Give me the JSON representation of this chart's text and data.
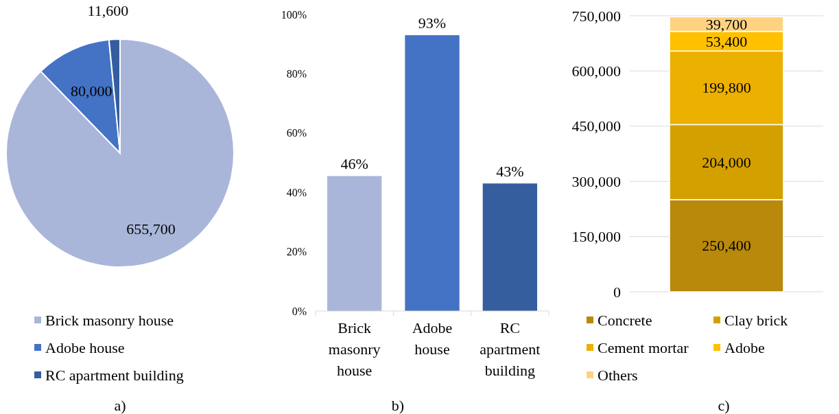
{
  "chart_data": [
    {
      "type": "pie",
      "categories": [
        "Brick masonry house",
        "Adobe house",
        "RC apartment building"
      ],
      "values": [
        655700,
        80000,
        11600
      ],
      "colors": [
        "#a9b6da",
        "#4472c4",
        "#355e9f"
      ],
      "value_labels": [
        "655,700",
        "80,000",
        "11,600"
      ],
      "legend": "bottom",
      "annotations": [
        "a)"
      ]
    },
    {
      "type": "bar",
      "categories": [
        "Brick masonry house",
        "Adobe house",
        "RC apartment building"
      ],
      "values": [
        45.5,
        93,
        43
      ],
      "colors": [
        "#a9b6da",
        "#4472c4",
        "#355e9f"
      ],
      "value_labels": [
        "46%",
        "93%",
        "43%"
      ],
      "ylim": [
        0,
        100
      ],
      "yticks": [
        {
          "value": 0,
          "label": "0%"
        },
        {
          "value": 20,
          "label": "20%"
        },
        {
          "value": 40,
          "label": "40%"
        },
        {
          "value": 60,
          "label": "60%"
        },
        {
          "value": 80,
          "label": "80%"
        },
        {
          "value": 100,
          "label": "100%"
        }
      ],
      "grid": false,
      "annotations": [
        "b)"
      ]
    },
    {
      "type": "bar",
      "stacked": true,
      "categories": [
        null
      ],
      "series": [
        {
          "name": "Concrete",
          "color": "#b8890a",
          "values": [
            250400
          ],
          "value_labels": [
            "250,400"
          ]
        },
        {
          "name": "Clay brick",
          "color": "#d4a000",
          "values": [
            204000
          ],
          "value_labels": [
            "204,000"
          ]
        },
        {
          "name": "Cement mortar",
          "color": "#ebb000",
          "values": [
            199800
          ],
          "value_labels": [
            "199,800"
          ]
        },
        {
          "name": "Adobe",
          "color": "#ffc000",
          "values": [
            53400
          ],
          "value_labels": [
            "53,400"
          ]
        },
        {
          "name": "Others",
          "color": "#ffd282",
          "values": [
            39700
          ],
          "value_labels": [
            "39,700"
          ]
        }
      ],
      "ylim": [
        0,
        750000
      ],
      "yticks": [
        {
          "value": 0,
          "label": "0"
        },
        {
          "value": 150000,
          "label": "150,000"
        },
        {
          "value": 300000,
          "label": "300,000"
        },
        {
          "value": 450000,
          "label": "450,000"
        },
        {
          "value": 600000,
          "label": "600,000"
        },
        {
          "value": 750000,
          "label": "750,000"
        }
      ],
      "grid": "y",
      "legend": "bottom",
      "annotations": [
        "c)"
      ]
    }
  ]
}
